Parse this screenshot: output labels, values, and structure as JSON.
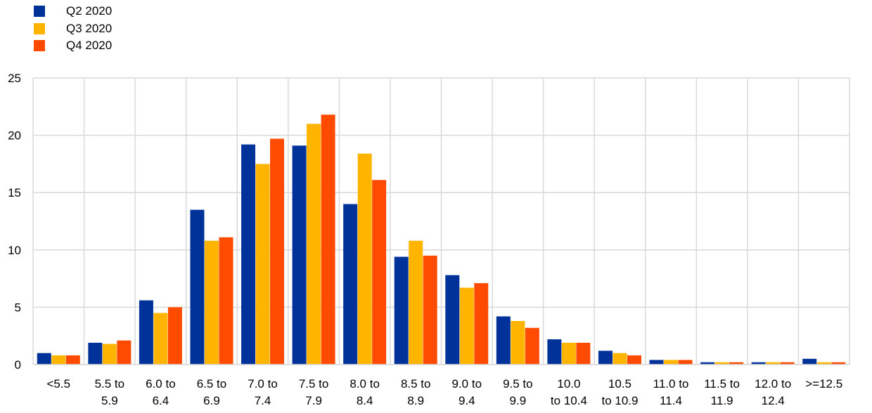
{
  "chart_data": {
    "type": "bar",
    "categories": [
      [
        "<5.5"
      ],
      [
        "5.5 to",
        "5.9"
      ],
      [
        "6.0 to",
        "6.4"
      ],
      [
        "6.5 to",
        "6.9"
      ],
      [
        "7.0 to",
        "7.4"
      ],
      [
        "7.5 to",
        "7.9"
      ],
      [
        "8.0 to",
        "8.4"
      ],
      [
        "8.5 to",
        "8.9"
      ],
      [
        "9.0 to",
        "9.4"
      ],
      [
        "9.5 to",
        "9.9"
      ],
      [
        "10.0",
        "to 10.4"
      ],
      [
        "10.5",
        "to 10.9"
      ],
      [
        "11.0 to",
        "11.4"
      ],
      [
        "11.5 to",
        "11.9"
      ],
      [
        "12.0 to",
        "12.4"
      ],
      [
        ">=12.5"
      ]
    ],
    "series": [
      {
        "name": "Q2 2020",
        "color": "#003299",
        "values": [
          1.0,
          1.9,
          5.6,
          13.5,
          19.2,
          19.1,
          14.0,
          9.4,
          7.8,
          4.2,
          2.2,
          1.2,
          0.4,
          0.2,
          0.2,
          0.5
        ]
      },
      {
        "name": "Q3 2020",
        "color": "#FFB400",
        "values": [
          0.8,
          1.8,
          4.5,
          10.8,
          17.5,
          21.0,
          18.4,
          10.8,
          6.7,
          3.8,
          1.9,
          1.0,
          0.4,
          0.2,
          0.2,
          0.2
        ]
      },
      {
        "name": "Q4 2020",
        "color": "#FF4B00",
        "values": [
          0.8,
          2.1,
          5.0,
          11.1,
          19.7,
          21.8,
          16.1,
          9.5,
          7.1,
          3.2,
          1.9,
          0.8,
          0.4,
          0.2,
          0.2,
          0.2
        ]
      }
    ],
    "yticks": [
      "0",
      "5",
      "10",
      "15",
      "20",
      "25"
    ],
    "ylim": [
      0,
      25
    ],
    "grid": true,
    "legend_position": "top-left"
  }
}
